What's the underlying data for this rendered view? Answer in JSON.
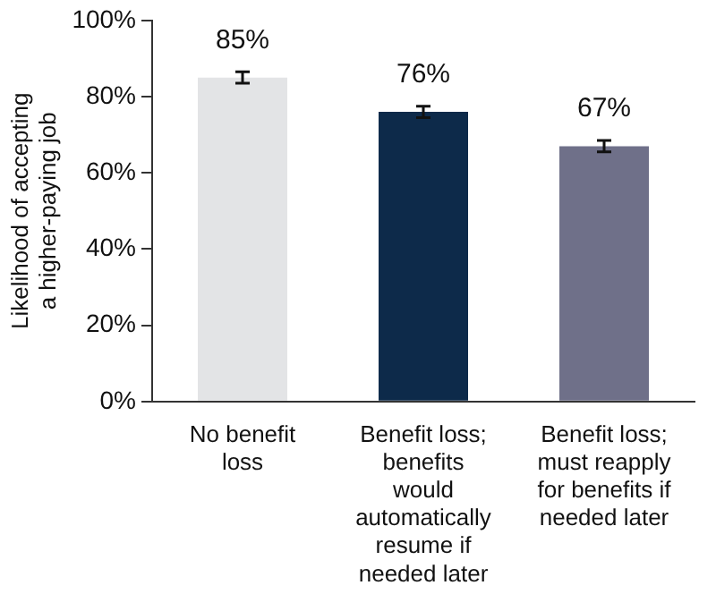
{
  "chart_data": {
    "type": "bar",
    "ylabel": "Likelihood of accepting a higher-paying job",
    "categories": [
      "No benefit loss",
      "Benefit loss; benefits would automatically resume if needed later",
      "Benefit loss; must reapply for benefits if needed later"
    ],
    "values": [
      85,
      76,
      67
    ],
    "colors": [
      "#e3e4e6",
      "#0d2a4a",
      "#6f7089"
    ],
    "errors": [
      1.5,
      1.5,
      1.5
    ],
    "value_labels": [
      "85%",
      "76%",
      "67%"
    ],
    "ylim": [
      0,
      100
    ],
    "yticks": [
      {
        "value": 0,
        "label": "0%"
      },
      {
        "value": 20,
        "label": "20%"
      },
      {
        "value": 40,
        "label": "40%"
      },
      {
        "value": 60,
        "label": "60%"
      },
      {
        "value": 80,
        "label": "80%"
      },
      {
        "value": 100,
        "label": "100%"
      }
    ],
    "grid": false,
    "legend": false
  }
}
